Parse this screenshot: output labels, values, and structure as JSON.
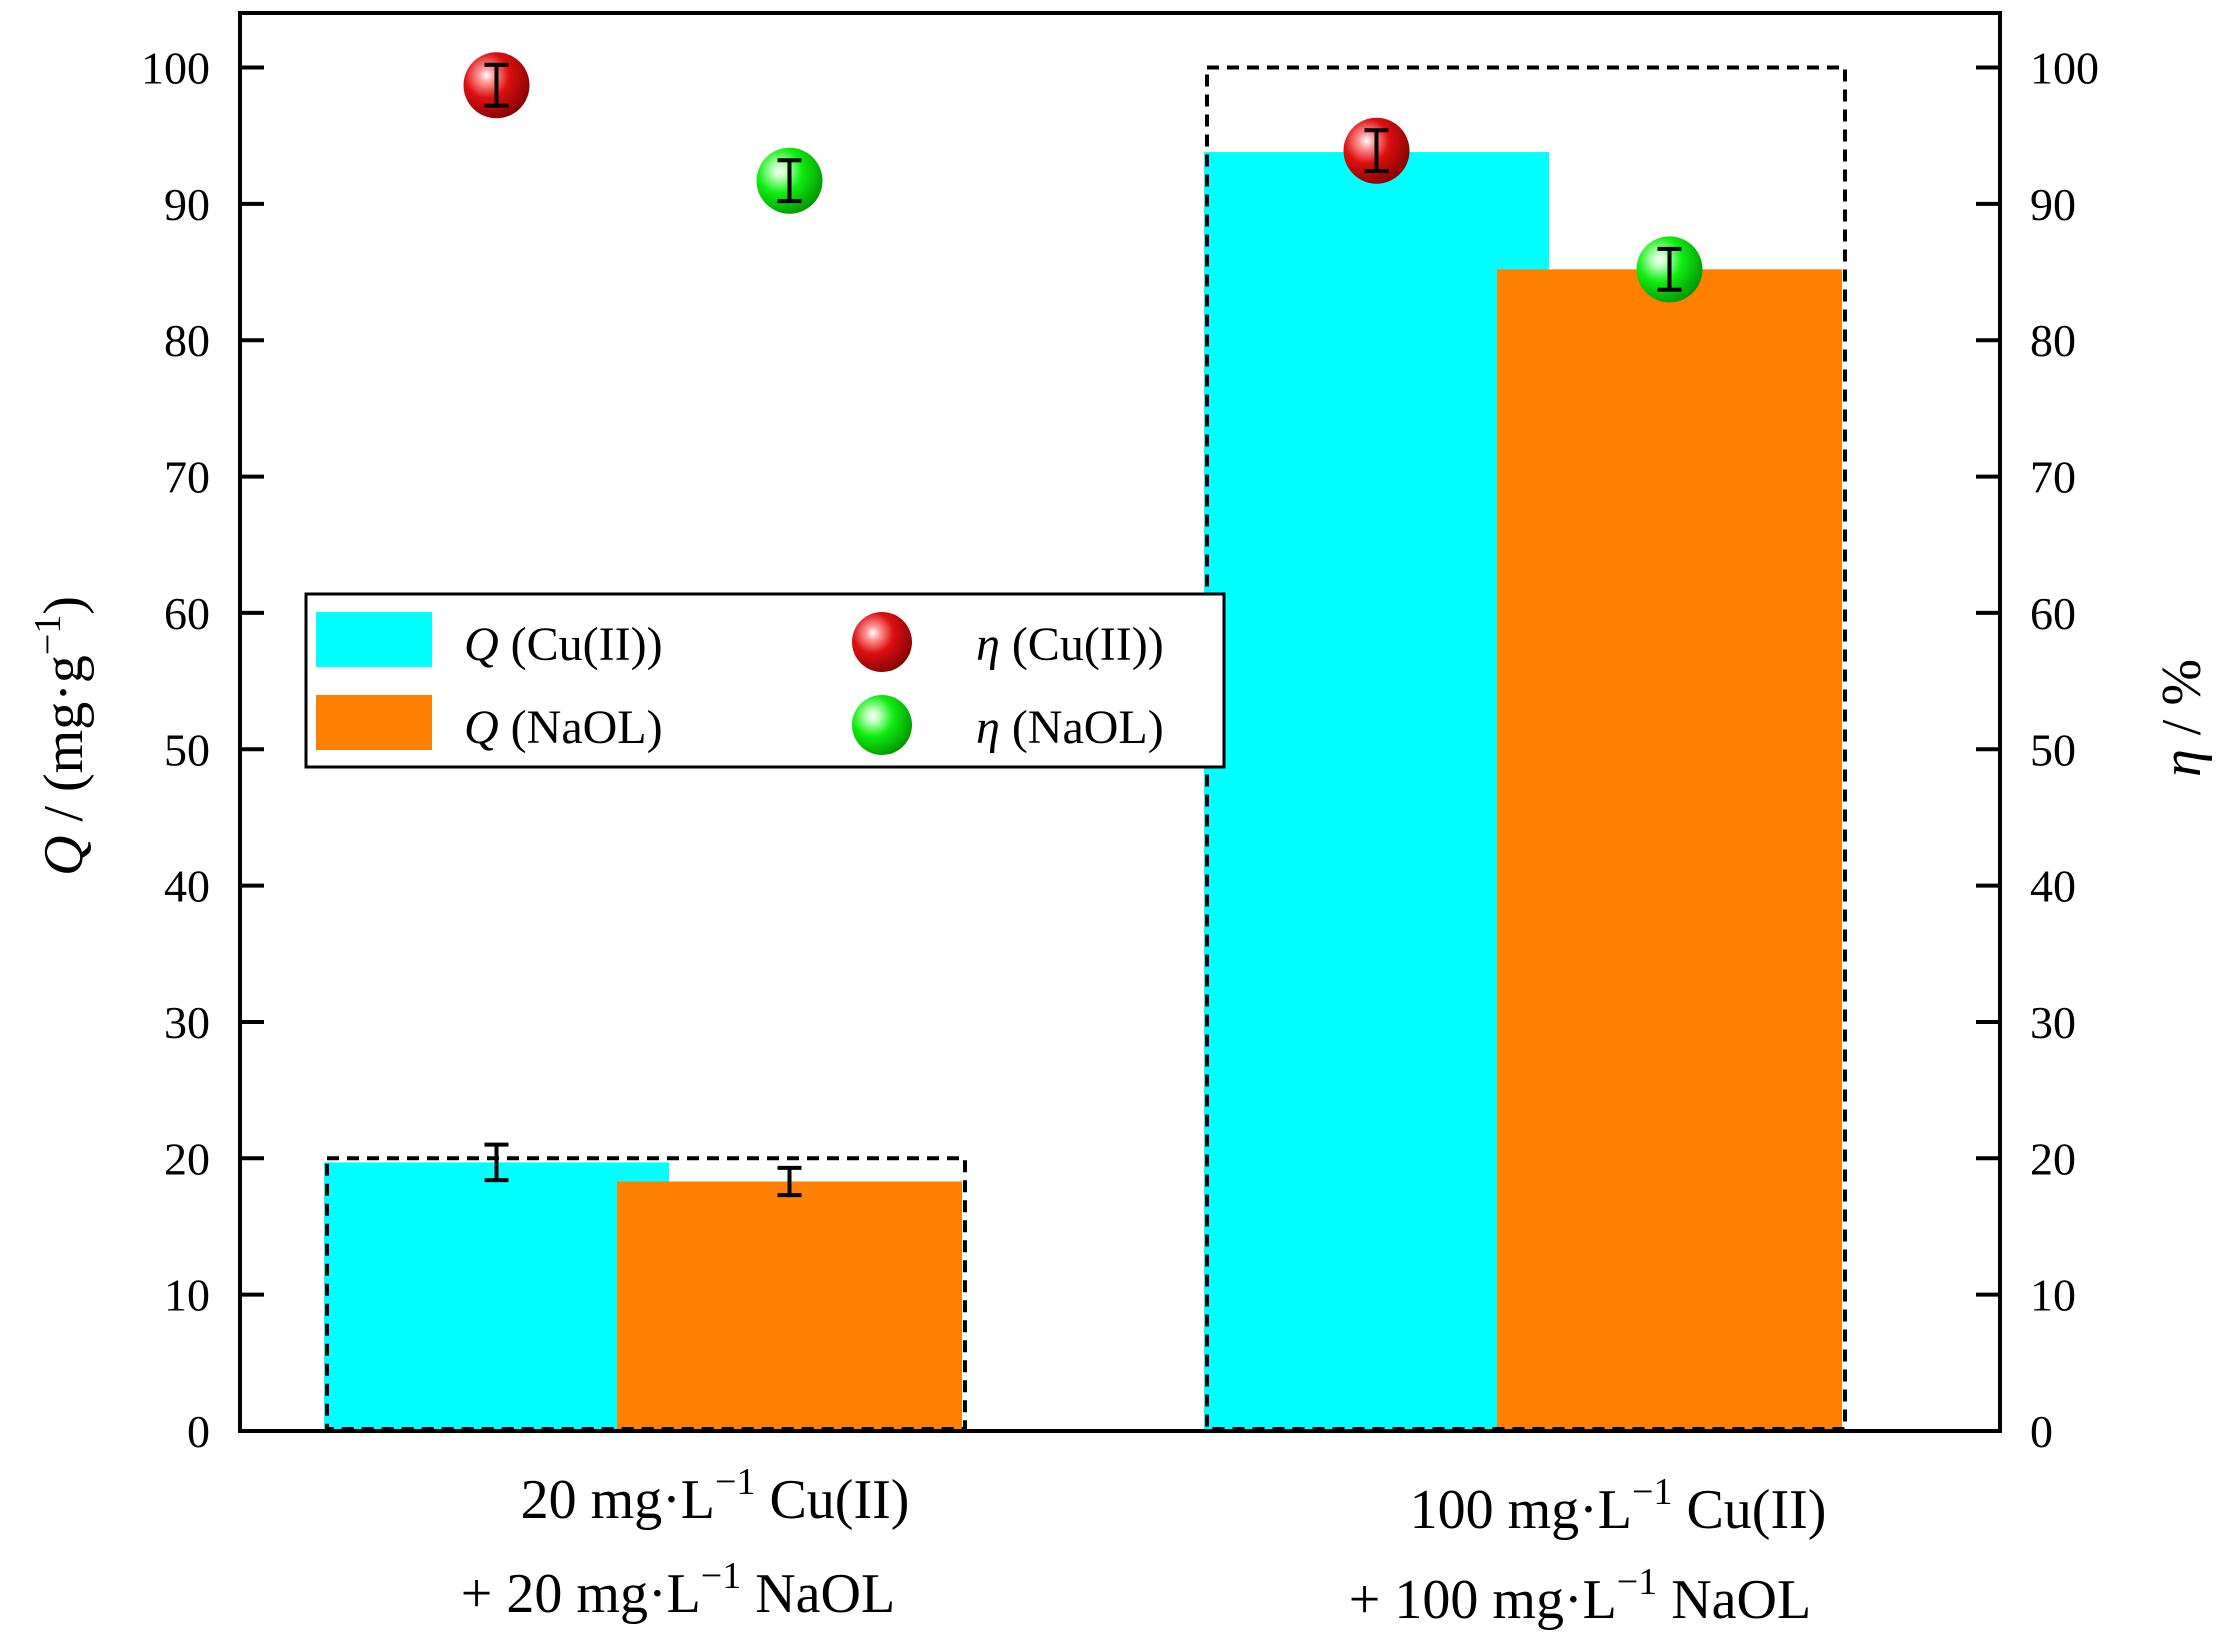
{
  "chart_data": {
    "type": "bar",
    "categories": [
      {
        "line1": "20 mg·L",
        "sup1": "−1",
        "rest1": " Cu(II)",
        "line2_prefix": "+  20 mg·L",
        "sup2": "−1",
        "rest2": " NaOL"
      },
      {
        "line1": "100 mg·L",
        "sup1": "−1",
        "rest1": " Cu(II)",
        "line2_prefix": "+  100 mg·L",
        "sup2": "−1",
        "rest2": " NaOL"
      }
    ],
    "bar_series": [
      {
        "name": "Q (Cu(II))",
        "symbol": "Q",
        "label": " (Cu(II))",
        "color": "#00ffff",
        "values": [
          19.7,
          93.8
        ],
        "errors": [
          1.3,
          null
        ]
      },
      {
        "name": "Q (NaOL)",
        "symbol": "Q",
        "label": " (NaOL)",
        "color": "#ff7f00",
        "values": [
          18.3,
          85.2
        ],
        "errors": [
          1.0,
          null
        ]
      }
    ],
    "point_series": [
      {
        "name": "η (Cu(II))",
        "symbol": "η",
        "label": " (Cu(II))",
        "color": "#cc0000",
        "values": [
          98.7,
          93.9
        ],
        "errors": [
          1.5,
          1.5
        ]
      },
      {
        "name": "η (NaOL)",
        "symbol": "η",
        "label": " (NaOL)",
        "color": "#00e000",
        "values": [
          91.7,
          85.2
        ],
        "errors": [
          1.5,
          1.5
        ]
      }
    ],
    "left_axis": {
      "title_symbol": "Q",
      "title_rest": " / (mg·g",
      "title_sup": "−1",
      "title_close": ")",
      "ylim": [
        0,
        104
      ],
      "ticks": [
        0,
        10,
        20,
        30,
        40,
        50,
        60,
        70,
        80,
        90,
        100
      ]
    },
    "right_axis": {
      "title_symbol": "η",
      "title_rest": " / %",
      "ylim": [
        0,
        104
      ],
      "ticks": [
        0,
        10,
        20,
        30,
        40,
        50,
        60,
        70,
        80,
        90,
        100
      ]
    },
    "dashed_boxes": [
      {
        "category": 0,
        "top": 20
      },
      {
        "category": 1,
        "top": 100
      }
    ],
    "legend_position": "center-left",
    "grid": false
  }
}
